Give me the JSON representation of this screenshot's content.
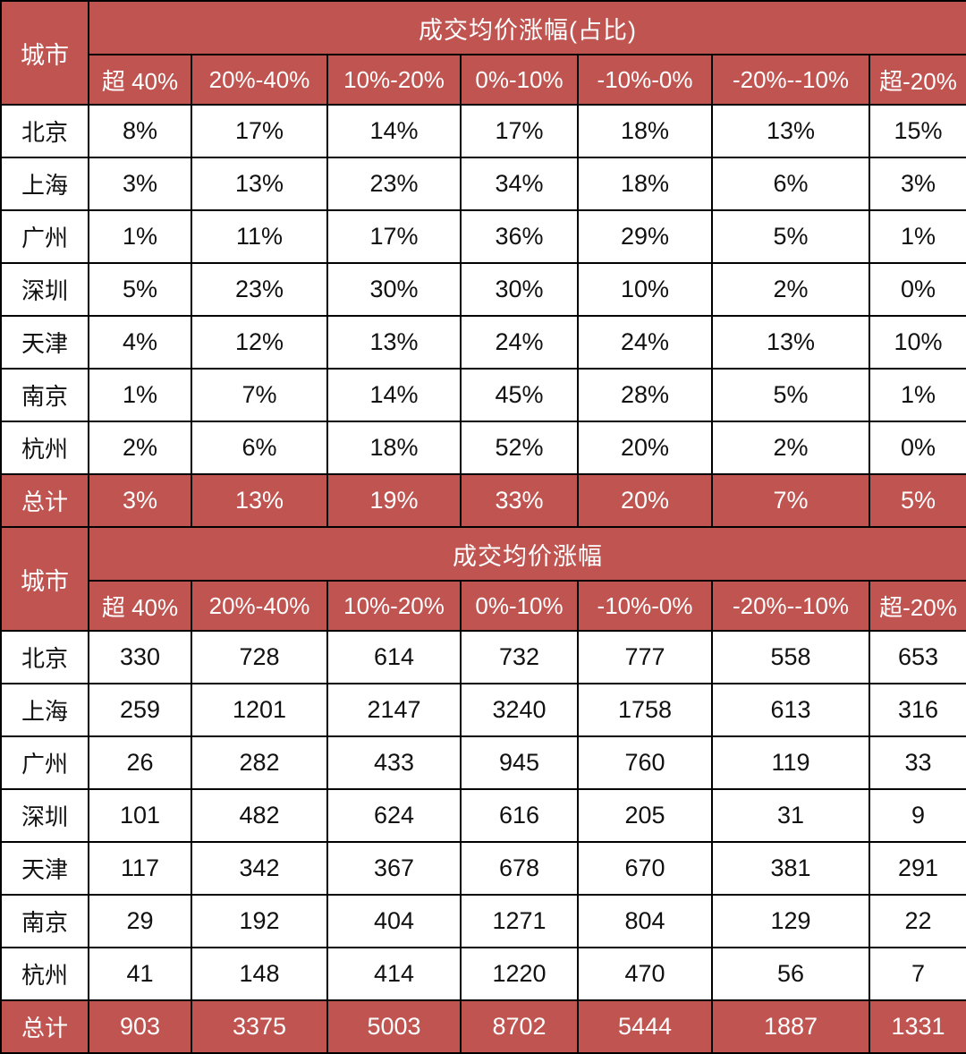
{
  "style": {
    "header_bg": "#BF5451",
    "header_fg": "#FFFFFF",
    "body_fg": "#111111",
    "border_color": "#000000",
    "row_bg": "#FFFFFF"
  },
  "chart_data": [
    {
      "type": "table",
      "title": "成交均价涨幅(占比)",
      "corner_label": "城市",
      "columns": [
        "超 40%",
        "20%-40%",
        "10%-20%",
        "0%-10%",
        "-10%-0%",
        "-20%--10%",
        "超-20%"
      ],
      "rows": [
        {
          "city": "北京",
          "values": [
            "8%",
            "17%",
            "14%",
            "17%",
            "18%",
            "13%",
            "15%"
          ]
        },
        {
          "city": "上海",
          "values": [
            "3%",
            "13%",
            "23%",
            "34%",
            "18%",
            "6%",
            "3%"
          ]
        },
        {
          "city": "广州",
          "values": [
            "1%",
            "11%",
            "17%",
            "36%",
            "29%",
            "5%",
            "1%"
          ]
        },
        {
          "city": "深圳",
          "values": [
            "5%",
            "23%",
            "30%",
            "30%",
            "10%",
            "2%",
            "0%"
          ]
        },
        {
          "city": "天津",
          "values": [
            "4%",
            "12%",
            "13%",
            "24%",
            "24%",
            "13%",
            "10%"
          ]
        },
        {
          "city": "南京",
          "values": [
            "1%",
            "7%",
            "14%",
            "45%",
            "28%",
            "5%",
            "1%"
          ]
        },
        {
          "city": "杭州",
          "values": [
            "2%",
            "6%",
            "18%",
            "52%",
            "20%",
            "2%",
            "0%"
          ]
        }
      ],
      "total_row": {
        "city": "总计",
        "values": [
          "3%",
          "13%",
          "19%",
          "33%",
          "20%",
          "7%",
          "5%"
        ]
      }
    },
    {
      "type": "table",
      "title": "成交均价涨幅",
      "corner_label": "城市",
      "columns": [
        "超 40%",
        "20%-40%",
        "10%-20%",
        "0%-10%",
        "-10%-0%",
        "-20%--10%",
        "超-20%"
      ],
      "rows": [
        {
          "city": "北京",
          "values": [
            330,
            728,
            614,
            732,
            777,
            558,
            653
          ]
        },
        {
          "city": "上海",
          "values": [
            259,
            1201,
            2147,
            3240,
            1758,
            613,
            316
          ]
        },
        {
          "city": "广州",
          "values": [
            26,
            282,
            433,
            945,
            760,
            119,
            33
          ]
        },
        {
          "city": "深圳",
          "values": [
            101,
            482,
            624,
            616,
            205,
            31,
            9
          ]
        },
        {
          "city": "天津",
          "values": [
            117,
            342,
            367,
            678,
            670,
            381,
            291
          ]
        },
        {
          "city": "南京",
          "values": [
            29,
            192,
            404,
            1271,
            804,
            129,
            22
          ]
        },
        {
          "city": "杭州",
          "values": [
            41,
            148,
            414,
            1220,
            470,
            56,
            7
          ]
        }
      ],
      "total_row": {
        "city": "总计",
        "values": [
          903,
          3375,
          5003,
          8702,
          5444,
          1887,
          1331
        ]
      }
    }
  ]
}
